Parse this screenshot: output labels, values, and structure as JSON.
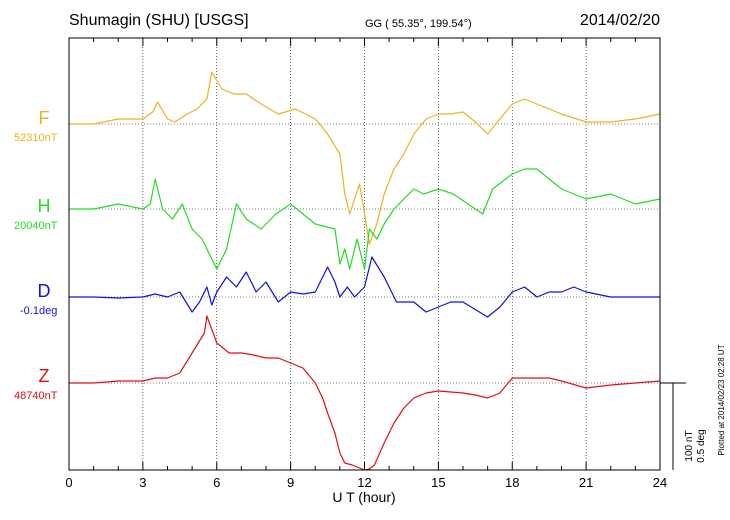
{
  "header": {
    "title": "Shumagin (SHU)  [USGS]",
    "coords": "GG ( 55.35°, 199.54°)",
    "date": "2014/02/20"
  },
  "components": [
    {
      "label": "F",
      "baseline": "52310nT",
      "color": "#f0b020"
    },
    {
      "label": "H",
      "baseline": "20040nT",
      "color": "#22dd22"
    },
    {
      "label": "D",
      "baseline": "-0.1deg",
      "color": "#1010e0"
    },
    {
      "label": "Z",
      "baseline": "48740nT",
      "color": "#e01010"
    }
  ],
  "scale_bar": {
    "line1": "100 nT",
    "line2": "0.5 deg"
  },
  "plotted_note": "Plotted at 2014/02/23 02:28 UT",
  "chart_data": {
    "type": "line",
    "xlabel": "U T (hour)",
    "xlim": [
      0,
      24
    ],
    "x_ticks": [
      0,
      3,
      6,
      9,
      12,
      15,
      18,
      21,
      24
    ],
    "grid": true,
    "units": "nT (F, H, Z); deg (D)",
    "series": [
      {
        "name": "F",
        "color": "#f0b020",
        "baseline": 52310,
        "x": [
          0,
          1,
          2,
          3,
          3.4,
          3.6,
          4,
          4.3,
          4.8,
          5.2,
          5.6,
          5.8,
          6.2,
          6.7,
          7.2,
          7.8,
          8.5,
          9.2,
          10,
          10.5,
          11,
          11.2,
          11.4,
          11.6,
          11.8,
          12,
          12.2,
          12.5,
          12.8,
          13.2,
          13.6,
          14,
          14.5,
          15,
          15.5,
          16,
          16.5,
          17,
          17.5,
          18,
          18.5,
          19,
          19.5,
          20,
          21,
          22,
          23,
          24
        ],
        "y": [
          0,
          0,
          5,
          5,
          12,
          22,
          5,
          2,
          10,
          15,
          25,
          52,
          35,
          30,
          30,
          20,
          10,
          15,
          5,
          -10,
          -30,
          -70,
          -90,
          -75,
          -60,
          -90,
          -120,
          -100,
          -70,
          -45,
          -30,
          -10,
          5,
          10,
          10,
          12,
          2,
          -10,
          5,
          20,
          25,
          20,
          15,
          10,
          2,
          2,
          5,
          10
        ]
      },
      {
        "name": "H",
        "color": "#22dd22",
        "baseline": 20040,
        "x": [
          0,
          1,
          2,
          3,
          3.3,
          3.5,
          3.8,
          4.2,
          4.6,
          5,
          5.4,
          5.8,
          6,
          6.4,
          6.8,
          7.2,
          7.8,
          8.4,
          9,
          10,
          10.8,
          11,
          11.2,
          11.4,
          11.7,
          12,
          12.2,
          12.5,
          12.8,
          13.2,
          13.6,
          14,
          14.4,
          15,
          15.6,
          16.2,
          16.8,
          17.2,
          18,
          18.5,
          19,
          19.5,
          20,
          21,
          22,
          23,
          24
        ],
        "y": [
          0,
          0,
          5,
          0,
          5,
          30,
          0,
          -10,
          5,
          -20,
          -30,
          -50,
          -60,
          -40,
          5,
          -10,
          -20,
          -5,
          5,
          -15,
          -20,
          -55,
          -40,
          -60,
          -30,
          -60,
          -20,
          -30,
          -15,
          0,
          10,
          20,
          15,
          20,
          15,
          5,
          -5,
          20,
          35,
          40,
          40,
          30,
          20,
          10,
          15,
          5,
          10
        ]
      },
      {
        "name": "D",
        "color": "#1010e0",
        "baseline": -0.1,
        "x": [
          0,
          1,
          2,
          3,
          3.5,
          4,
          4.5,
          5,
          5.3,
          5.6,
          5.8,
          6,
          6.4,
          6.8,
          7.2,
          7.6,
          8,
          8.5,
          9,
          9.5,
          10,
          10.5,
          10.8,
          11,
          11.3,
          11.6,
          12,
          12.3,
          12.8,
          13.3,
          14,
          14.5,
          15,
          15.5,
          16,
          17,
          17.5,
          18,
          18.5,
          19,
          19.5,
          20,
          20.5,
          21,
          22,
          23,
          24
        ],
        "y": [
          0,
          0,
          -1,
          0,
          3,
          0,
          5,
          -15,
          -5,
          10,
          -8,
          5,
          20,
          10,
          25,
          5,
          15,
          -5,
          5,
          3,
          5,
          30,
          15,
          0,
          10,
          0,
          10,
          40,
          20,
          -5,
          -5,
          -15,
          -10,
          -5,
          -5,
          -20,
          -10,
          5,
          10,
          0,
          5,
          5,
          10,
          5,
          0,
          0,
          0
        ]
      },
      {
        "name": "Z",
        "color": "#e01010",
        "baseline": 48740,
        "x": [
          0,
          1,
          2,
          3,
          3.5,
          4,
          4.5,
          5,
          5.5,
          5.6,
          6,
          6.5,
          7,
          7.5,
          8,
          8.5,
          9,
          9.5,
          10,
          10.3,
          10.5,
          10.8,
          11,
          11.2,
          11.5,
          11.8,
          12,
          12.2,
          12.4,
          12.8,
          13.2,
          13.6,
          14,
          14.5,
          15,
          16,
          16.5,
          17,
          17.5,
          18,
          18.5,
          19,
          19.5,
          20,
          21,
          22,
          23,
          24
        ],
        "y": [
          0,
          0,
          2,
          2,
          5,
          5,
          10,
          30,
          50,
          67,
          40,
          30,
          30,
          28,
          25,
          25,
          20,
          15,
          0,
          -15,
          -30,
          -50,
          -70,
          -80,
          -82,
          -85,
          -88,
          -86,
          -82,
          -60,
          -40,
          -25,
          -15,
          -10,
          -8,
          -10,
          -12,
          -15,
          -10,
          5,
          5,
          5,
          5,
          2,
          -5,
          -2,
          0,
          2
        ]
      }
    ]
  }
}
